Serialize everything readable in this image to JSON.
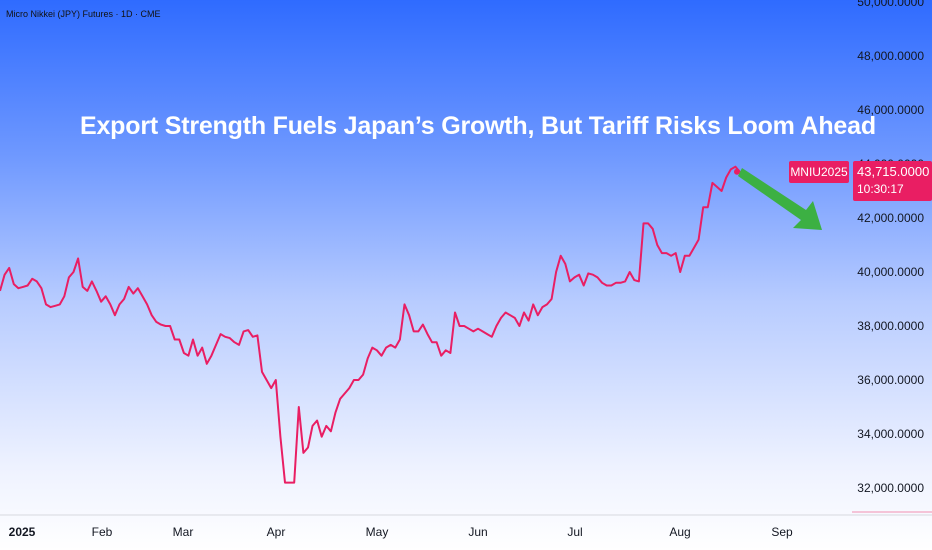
{
  "header": {
    "symbol_title": "Micro Nikkei (JPY) Futures · 1D · CME"
  },
  "headline": "Export Strength Fuels Japan’s Growth, But Tariff Risks Loom Ahead",
  "badge": {
    "ticker": "MNIU2025",
    "price": "43,715.0000",
    "countdown": "10:30:17"
  },
  "colors": {
    "line": "#e91e63",
    "arrow": "#3cb043",
    "badge": "#e91e63"
  },
  "chart_data": {
    "type": "line",
    "series": [
      {
        "values": [
          39300,
          39900,
          40150,
          39550,
          39400,
          39450,
          39500,
          39750,
          39650,
          39400,
          38800,
          38700,
          38750,
          38800,
          39100,
          39800,
          40000,
          40500,
          39450,
          39300,
          39650,
          39300,
          38900,
          39100,
          38800,
          38400,
          38800,
          39000,
          39450,
          39200,
          39400,
          39100,
          38800,
          38400,
          38150,
          38050,
          38000,
          38000,
          37500,
          37500,
          37000,
          36900,
          37500,
          36900,
          37200,
          36600,
          36900,
          37300,
          37700,
          37600,
          37550,
          37400,
          37300,
          37800,
          37850,
          37600,
          37650,
          36300,
          36000,
          35700,
          36000,
          33900,
          32200,
          32200,
          32200,
          35000,
          33300,
          33500,
          34300,
          34500,
          33900,
          34300,
          34100,
          34800,
          35300,
          35500,
          35700,
          36000,
          36000,
          36200,
          36800,
          37200,
          37100,
          36900,
          37200,
          37300,
          37200,
          37500,
          38800,
          38400,
          37800,
          37800,
          38050,
          37700,
          37400,
          37400,
          36900,
          37100,
          37000,
          38500,
          38000,
          38000,
          37900,
          37800,
          37900,
          37800,
          37700,
          37600,
          38000,
          38300,
          38500,
          38400,
          38300,
          38000,
          38500,
          38200,
          38800,
          38400,
          38700,
          38800,
          39000,
          40000,
          40600,
          40300,
          39650,
          39800,
          39900,
          39500,
          39950,
          39900,
          39800,
          39600,
          39500,
          39500,
          39600,
          39600,
          39650,
          40000,
          39700,
          39650,
          41800,
          41800,
          41600,
          41000,
          40700,
          40700,
          40600,
          40700,
          40000,
          40600,
          40600,
          40900,
          41200,
          42400,
          42400,
          43300,
          43150,
          43000,
          43500,
          43800,
          43900,
          43700
        ],
        "last": 43715
      }
    ],
    "x_ticks": [
      "2025",
      "Feb",
      "Mar",
      "Apr",
      "May",
      "Jun",
      "Jul",
      "Aug",
      "Sep"
    ],
    "y_ticks": [
      "50,000.0000",
      "48,000.0000",
      "46,000.0000",
      "44,000.0000",
      "42,000.0000",
      "40,000.0000",
      "38,000.0000",
      "36,000.0000",
      "34,000.0000",
      "32,000.0000"
    ],
    "ylim": [
      31000,
      50200
    ],
    "annotation": "down-arrow"
  }
}
